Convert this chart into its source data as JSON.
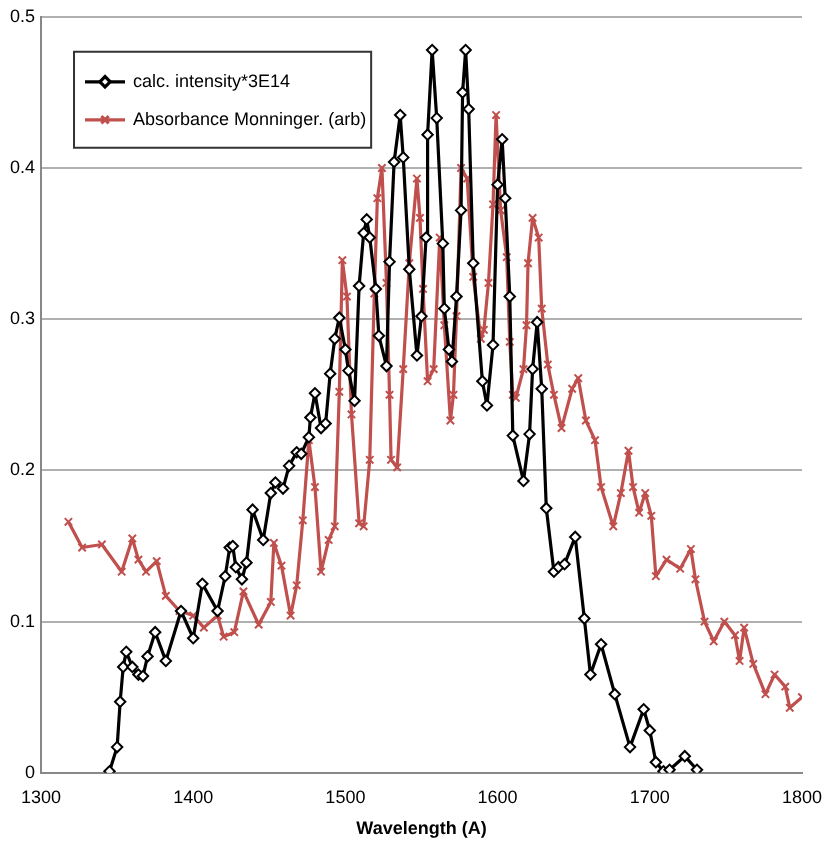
{
  "chart_data": {
    "type": "line",
    "xlabel": "Wavelength (A)",
    "xlim": [
      1300,
      1800
    ],
    "xticks": [
      1300,
      1400,
      1500,
      1600,
      1700,
      1800
    ],
    "ylim": [
      0,
      0.5
    ],
    "yticks": [
      0,
      0.1,
      0.2,
      0.3,
      0.4,
      0.5
    ],
    "grid": "y",
    "legend": "top left",
    "line_style": "solid",
    "series": [
      {
        "name": "calc. intensity*3E14",
        "color": "#000000",
        "marker": "diamond",
        "x": [
          1345,
          1350,
          1352,
          1354,
          1356,
          1360,
          1364,
          1367,
          1370,
          1375,
          1382,
          1392,
          1400,
          1406,
          1416,
          1421,
          1424,
          1426,
          1428,
          1432,
          1435,
          1439,
          1446,
          1451,
          1454,
          1459,
          1463,
          1468,
          1471,
          1476,
          1477,
          1480,
          1484,
          1487,
          1490,
          1493,
          1496,
          1500,
          1502,
          1506,
          1509,
          1512,
          1514,
          1516,
          1520,
          1522,
          1527,
          1529,
          1532,
          1536,
          1538,
          1542,
          1547,
          1550,
          1553,
          1554,
          1557,
          1560,
          1564,
          1565,
          1568,
          1570,
          1573,
          1576,
          1577,
          1579,
          1581,
          1584,
          1590,
          1593,
          1597,
          1600,
          1603,
          1605,
          1608,
          1610,
          1617,
          1621,
          1623,
          1626,
          1629,
          1632,
          1637,
          1640,
          1644,
          1651,
          1657,
          1661,
          1668,
          1677,
          1687,
          1696,
          1700,
          1704,
          1709,
          1713,
          1723,
          1731
        ],
        "values": [
          0.001,
          0.017,
          0.047,
          0.07,
          0.08,
          0.07,
          0.065,
          0.064,
          0.077,
          0.093,
          0.074,
          0.107,
          0.089,
          0.125,
          0.107,
          0.13,
          0.149,
          0.15,
          0.136,
          0.128,
          0.139,
          0.174,
          0.154,
          0.185,
          0.192,
          0.188,
          0.203,
          0.212,
          0.211,
          0.222,
          0.235,
          0.251,
          0.228,
          0.231,
          0.264,
          0.287,
          0.301,
          0.28,
          0.266,
          0.246,
          0.322,
          0.357,
          0.366,
          0.354,
          0.32,
          0.289,
          0.269,
          0.338,
          0.404,
          0.435,
          0.407,
          0.333,
          0.276,
          0.302,
          0.354,
          0.422,
          0.478,
          0.433,
          0.35,
          0.307,
          0.28,
          0.272,
          0.315,
          0.372,
          0.45,
          0.478,
          0.439,
          0.337,
          0.259,
          0.243,
          0.283,
          0.389,
          0.419,
          0.38,
          0.315,
          0.223,
          0.193,
          0.224,
          0.267,
          0.298,
          0.254,
          0.175,
          0.133,
          0.136,
          0.138,
          0.156,
          0.102,
          0.065,
          0.085,
          0.052,
          0.017,
          0.042,
          0.028,
          0.007,
          0.001,
          0.002,
          0.011,
          0.002
        ]
      },
      {
        "name": "Absorbance Monninger. (arb)",
        "color": "#c0504d",
        "marker": "cross",
        "x": [
          1318,
          1327,
          1340,
          1353,
          1360,
          1364,
          1369,
          1376,
          1382,
          1391,
          1400,
          1407,
          1416,
          1420,
          1427,
          1433,
          1443,
          1451,
          1453,
          1458,
          1464,
          1468,
          1472,
          1476,
          1480,
          1484,
          1489,
          1493,
          1496,
          1498,
          1501,
          1504,
          1509,
          1512,
          1516,
          1519,
          1521,
          1524,
          1527,
          1529,
          1530,
          1534,
          1538,
          1542,
          1547,
          1549,
          1551,
          1554,
          1558,
          1562,
          1565,
          1569,
          1571,
          1573,
          1576,
          1580,
          1584,
          1589,
          1591,
          1594,
          1597,
          1599,
          1602,
          1606,
          1608,
          1610,
          1612,
          1617,
          1619,
          1620,
          1623,
          1627,
          1629,
          1633,
          1637,
          1642,
          1649,
          1653,
          1658,
          1664,
          1668,
          1676,
          1681,
          1686,
          1689,
          1693,
          1697,
          1701,
          1704,
          1711,
          1720,
          1727,
          1730,
          1736,
          1742,
          1749,
          1756,
          1759,
          1762,
          1768,
          1776,
          1782,
          1789,
          1792,
          1800
        ],
        "values": [
          0.166,
          0.149,
          0.151,
          0.133,
          0.155,
          0.141,
          0.133,
          0.14,
          0.117,
          0.107,
          0.104,
          0.096,
          0.104,
          0.09,
          0.093,
          0.12,
          0.098,
          0.113,
          0.152,
          0.137,
          0.104,
          0.124,
          0.167,
          0.22,
          0.189,
          0.133,
          0.154,
          0.163,
          0.252,
          0.339,
          0.315,
          0.237,
          0.165,
          0.163,
          0.207,
          0.317,
          0.38,
          0.4,
          0.324,
          0.25,
          0.207,
          0.202,
          0.267,
          0.337,
          0.393,
          0.367,
          0.32,
          0.259,
          0.267,
          0.354,
          0.296,
          0.233,
          0.25,
          0.302,
          0.4,
          0.393,
          0.328,
          0.287,
          0.293,
          0.324,
          0.376,
          0.435,
          0.372,
          0.341,
          0.285,
          0.25,
          0.248,
          0.267,
          0.296,
          0.337,
          0.367,
          0.354,
          0.307,
          0.27,
          0.25,
          0.228,
          0.254,
          0.261,
          0.233,
          0.22,
          0.189,
          0.163,
          0.185,
          0.213,
          0.189,
          0.172,
          0.185,
          0.17,
          0.13,
          0.141,
          0.135,
          0.148,
          0.128,
          0.1,
          0.087,
          0.1,
          0.091,
          0.074,
          0.096,
          0.072,
          0.052,
          0.065,
          0.057,
          0.043,
          0.05
        ]
      }
    ]
  }
}
